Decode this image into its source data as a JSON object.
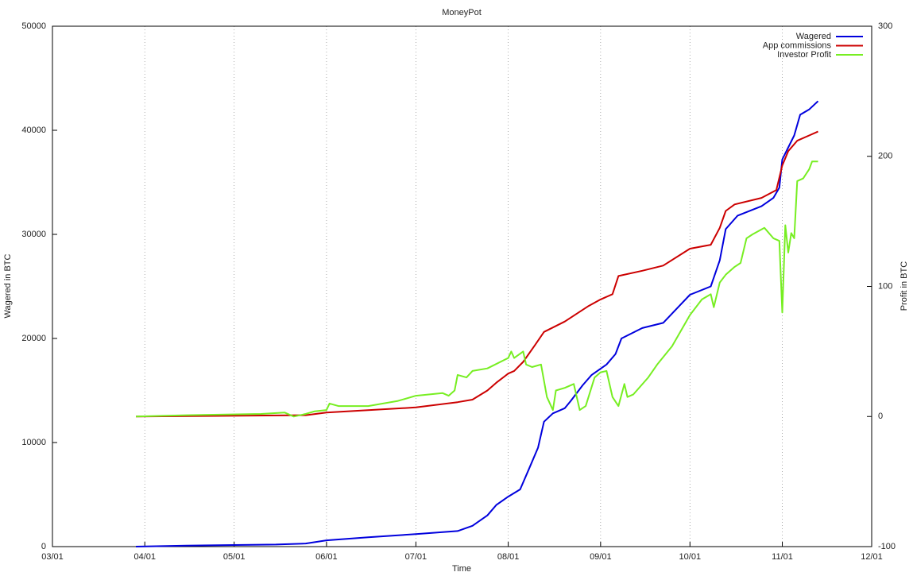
{
  "chart_data": {
    "type": "line",
    "title": "MoneyPot",
    "x_label": "Time",
    "y_label": "Wagered in BTC",
    "y2_label": "Profit in BTC",
    "xlim": [
      "03/01",
      "12/01"
    ],
    "xticks": [
      "03/01",
      "04/01",
      "05/01",
      "06/01",
      "07/01",
      "08/01",
      "09/01",
      "10/01",
      "11/01",
      "12/01"
    ],
    "ylim": [
      0,
      50000
    ],
    "yticks": [
      0,
      10000,
      20000,
      30000,
      40000,
      50000
    ],
    "y2lim": [
      -100,
      300
    ],
    "y2ticks": [
      -100,
      0,
      100,
      200,
      300
    ],
    "grid": true,
    "legend": "top-right",
    "series": [
      {
        "name": "Wagered",
        "color": "#0000dd",
        "axis": "y",
        "x": [
          "03/29",
          "04/15",
          "05/15",
          "05/25",
          "06/01",
          "06/15",
          "07/01",
          "07/15",
          "07/20",
          "07/25",
          "07/28",
          "08/01",
          "08/05",
          "08/08",
          "08/11",
          "08/13",
          "08/16",
          "08/20",
          "08/22",
          "08/26",
          "08/29",
          "09/03",
          "09/06",
          "09/08",
          "09/15",
          "09/22",
          "10/01",
          "10/08",
          "10/11",
          "10/13",
          "10/17",
          "10/25",
          "10/29",
          "10/31",
          "11/01",
          "11/05",
          "11/07",
          "11/10",
          "11/13"
        ],
        "values": [
          0,
          100,
          200,
          300,
          600,
          900,
          1200,
          1500,
          2000,
          3000,
          4000,
          4800,
          5500,
          7500,
          9500,
          12000,
          12800,
          13300,
          14000,
          15500,
          16500,
          17500,
          18500,
          20000,
          21000,
          21500,
          24200,
          25000,
          27500,
          30500,
          31800,
          32700,
          33500,
          34500,
          37200,
          39500,
          41500,
          42000,
          42800
        ]
      },
      {
        "name": "App commissions",
        "color": "#cc0000",
        "axis": "y2",
        "x": [
          "03/29",
          "05/25",
          "06/01",
          "07/01",
          "07/15",
          "07/20",
          "07/25",
          "07/28",
          "08/01",
          "08/03",
          "08/06",
          "08/10",
          "08/13",
          "08/20",
          "08/28",
          "09/01",
          "09/05",
          "09/07",
          "09/15",
          "09/22",
          "10/01",
          "10/08",
          "10/11",
          "10/13",
          "10/16",
          "10/25",
          "10/30",
          "11/01",
          "11/03",
          "11/06",
          "11/10",
          "11/13"
        ],
        "values": [
          0,
          1,
          3,
          7,
          11,
          13,
          20,
          26,
          33,
          35,
          42,
          55,
          65,
          73,
          85,
          90,
          94,
          108,
          112,
          116,
          129,
          132,
          145,
          158,
          163,
          168,
          174,
          193,
          204,
          212,
          216,
          219
        ]
      },
      {
        "name": "Investor Profit",
        "color": "#77ee22",
        "axis": "y2",
        "x": [
          "03/29",
          "04/15",
          "05/10",
          "05/18",
          "05/21",
          "05/25",
          "05/28",
          "06/01",
          "06/02",
          "06/05",
          "06/15",
          "06/25",
          "07/01",
          "07/10",
          "07/12",
          "07/14",
          "07/15",
          "07/18",
          "07/20",
          "07/25",
          "08/01",
          "08/02",
          "08/03",
          "08/06",
          "08/07",
          "08/09",
          "08/12",
          "08/14",
          "08/16",
          "08/17",
          "08/20",
          "08/23",
          "08/25",
          "08/27",
          "08/30",
          "09/01",
          "09/03",
          "09/05",
          "09/07",
          "09/09",
          "09/10",
          "09/12",
          "09/17",
          "09/20",
          "09/25",
          "10/01",
          "10/05",
          "10/08",
          "10/09",
          "10/11",
          "10/13",
          "10/16",
          "10/18",
          "10/20",
          "10/22",
          "10/26",
          "10/29",
          "10/31",
          "11/01",
          "11/02",
          "11/03",
          "11/04",
          "11/05",
          "11/06",
          "11/08",
          "11/10",
          "11/11",
          "11/13"
        ],
        "values": [
          0,
          1,
          2,
          3,
          0,
          2,
          4,
          5,
          10,
          8,
          8,
          12,
          16,
          18,
          16,
          20,
          32,
          30,
          35,
          37,
          45,
          50,
          45,
          50,
          40,
          38,
          40,
          15,
          5,
          20,
          22,
          25,
          5,
          8,
          30,
          34,
          35,
          15,
          8,
          25,
          15,
          17,
          30,
          40,
          54,
          78,
          90,
          94,
          84,
          103,
          109,
          115,
          118,
          137,
          140,
          145,
          137,
          135,
          80,
          147,
          126,
          141,
          137,
          181,
          183,
          190,
          196,
          196
        ]
      }
    ]
  }
}
